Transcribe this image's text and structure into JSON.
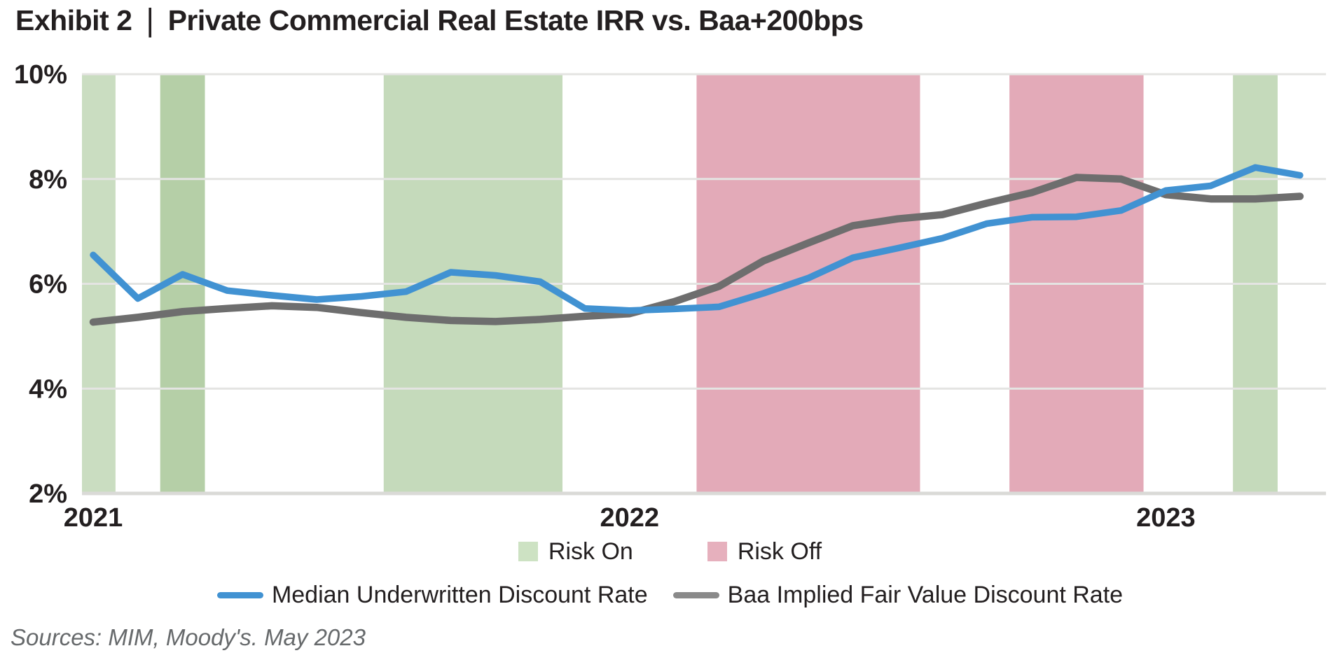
{
  "title": {
    "exhibit": "Exhibit 2",
    "separator": "|",
    "main": "Private Commercial Real Estate IRR vs. Baa+200bps"
  },
  "source_note": "Sources: MIM, Moody's. May 2023",
  "colors": {
    "text_dark": "#231f20",
    "blue_line": "#4192d2",
    "gray_line": "#6e6e6e",
    "risk_on_light": "#caddc1",
    "risk_on_medium": "#b5cfa7",
    "risk_on_wide": "#c5dabb",
    "risk_off_pink": "#e3aab8",
    "gridline": "#e4e4e2",
    "axis_line": "#dadad7",
    "source_gray": "#66696b"
  },
  "chart_data": {
    "type": "line",
    "title": "Private Commercial Real Estate IRR vs. Baa+200bps",
    "xlabel": "",
    "ylabel": "",
    "grid": "horizontal",
    "legend_position": "bottom-center",
    "x_labels": [
      "2021-01",
      "2021-02",
      "2021-03",
      "2021-04",
      "2021-05",
      "2021-06",
      "2021-07",
      "2021-08",
      "2021-09",
      "2021-10",
      "2021-11",
      "2021-12",
      "2022-01",
      "2022-02",
      "2022-03",
      "2022-04",
      "2022-05",
      "2022-06",
      "2022-07",
      "2022-08",
      "2022-09",
      "2022-10",
      "2022-11",
      "2022-12",
      "2023-01",
      "2023-02",
      "2023-03",
      "2023-04"
    ],
    "x_axis_ticks": [
      {
        "month_index": 0,
        "label": "2021"
      },
      {
        "month_index": 12,
        "label": "2022"
      },
      {
        "month_index": 24,
        "label": "2023"
      }
    ],
    "y_axis": {
      "min": 2,
      "max": 10,
      "ticks": [
        {
          "value": 10,
          "label": "10%"
        },
        {
          "value": 8,
          "label": "8%"
        },
        {
          "value": 6,
          "label": "6%"
        },
        {
          "value": 4,
          "label": "4%"
        },
        {
          "value": 2,
          "label": "2%"
        }
      ]
    },
    "series": [
      {
        "name": "Median Underwritten Discount Rate",
        "color": "#4192d2",
        "values": [
          6.55,
          5.72,
          6.18,
          5.87,
          5.78,
          5.7,
          5.76,
          5.85,
          6.22,
          6.16,
          6.04,
          5.53,
          5.49,
          5.52,
          5.56,
          5.82,
          6.11,
          6.5,
          6.68,
          6.87,
          7.15,
          7.27,
          7.28,
          7.4,
          7.78,
          7.87,
          8.22,
          8.07
        ]
      },
      {
        "name": "Baa Implied Fair Value Discount Rate",
        "color": "#6e6e6e",
        "values": [
          5.27,
          5.36,
          5.47,
          5.53,
          5.58,
          5.55,
          5.45,
          5.36,
          5.3,
          5.28,
          5.32,
          5.38,
          5.43,
          5.66,
          5.95,
          6.44,
          6.78,
          7.11,
          7.24,
          7.32,
          7.54,
          7.74,
          8.03,
          8.0,
          7.7,
          7.62,
          7.62,
          7.67
        ]
      }
    ],
    "bands": [
      {
        "label": "Risk On",
        "from_month": -0.5,
        "to_month": 0.5,
        "color": "#caddc1"
      },
      {
        "label": "Risk On",
        "from_month": 1.5,
        "to_month": 2.5,
        "color": "#b5cfa7"
      },
      {
        "label": "Risk On",
        "from_month": 6.5,
        "to_month": 10.5,
        "color": "#c5dabb"
      },
      {
        "label": "Risk Off",
        "from_month": 13.5,
        "to_month": 18.5,
        "color": "#e3aab8"
      },
      {
        "label": "Risk Off",
        "from_month": 20.5,
        "to_month": 23.5,
        "color": "#e3aab8"
      },
      {
        "label": "Risk On",
        "from_month": 25.5,
        "to_month": 26.5,
        "color": "#c5dabb"
      }
    ],
    "legend": {
      "band_entries": [
        {
          "label": "Risk On",
          "color": "#cde2c3"
        },
        {
          "label": "Risk Off",
          "color": "#e6b0bd"
        }
      ],
      "series_entries": [
        {
          "label": "Median Underwritten Discount Rate",
          "color": "#4192d2"
        },
        {
          "label": "Baa Implied Fair Value Discount Rate",
          "color": "#8a8a8a"
        }
      ]
    }
  }
}
